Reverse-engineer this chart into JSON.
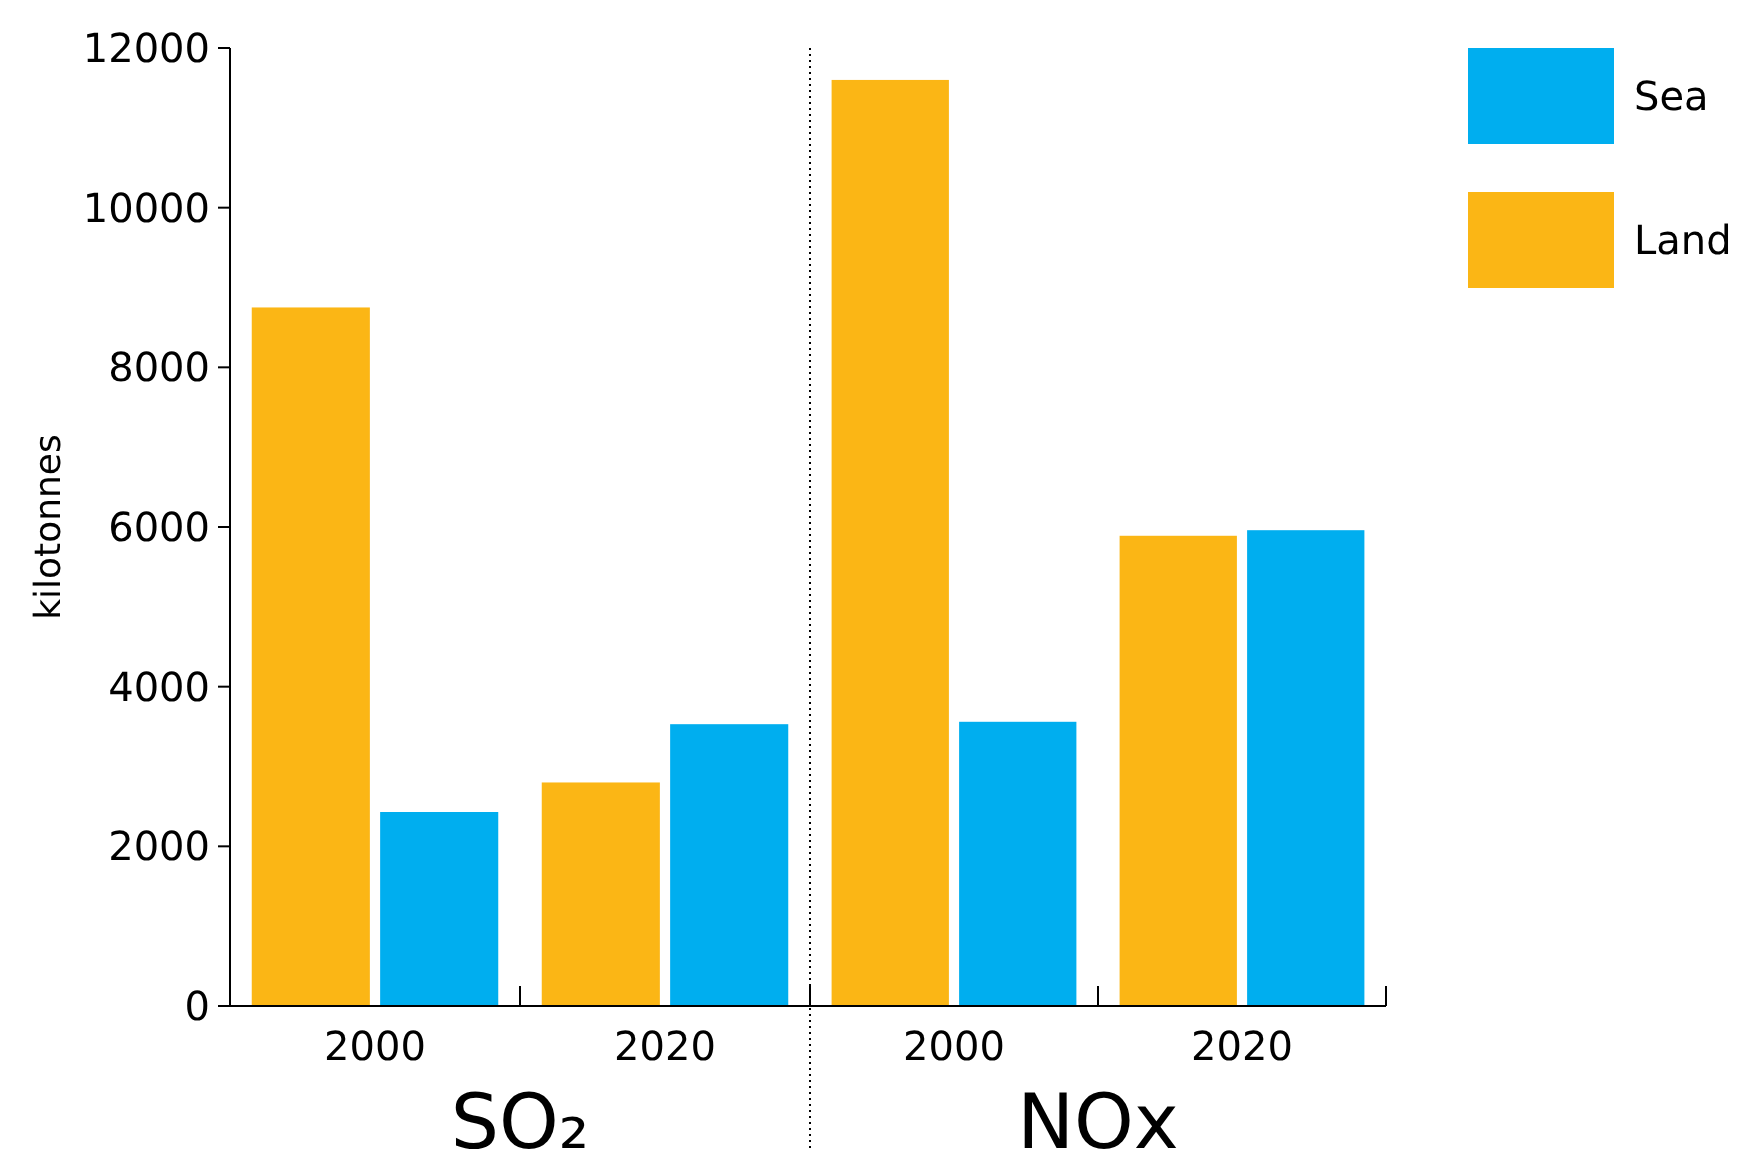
{
  "chart_data": [
    {
      "type": "bar",
      "xlabel": "SO₂",
      "ylabel": "kilotonnes",
      "categories": [
        "2000",
        "2020"
      ],
      "series": [
        {
          "color": "#fbb615",
          "values": [
            8750,
            2800
          ]
        },
        {
          "color": "#00aeef",
          "values": [
            2430,
            3530
          ]
        }
      ],
      "ylim": [
        0,
        12000
      ],
      "yticks": [
        0,
        2000,
        4000,
        6000,
        8000,
        10000,
        12000
      ]
    },
    {
      "type": "bar",
      "xlabel": "NOx",
      "categories": [
        "2000",
        "2020"
      ],
      "series": [
        {
          "name": "Land",
          "color": "#fbb615",
          "values": [
            11600,
            5890
          ]
        },
        {
          "name": "Sea",
          "color": "#00aeef",
          "values": [
            3560,
            5960
          ]
        }
      ],
      "ylim": [
        0,
        12000
      ],
      "tick_labels": "x",
      "legend": "right"
    }
  ]
}
